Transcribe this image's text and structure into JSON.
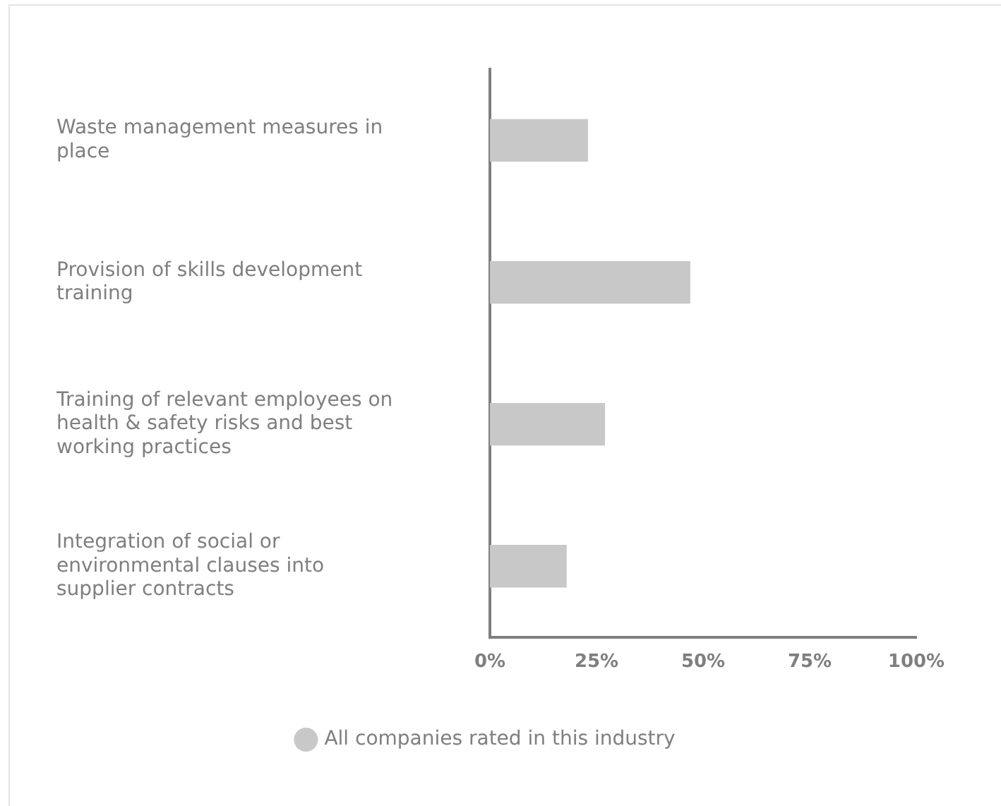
{
  "chart_data": {
    "type": "bar",
    "orientation": "horizontal",
    "categories": [
      "Waste management measures in place",
      "Provision of skills development training",
      "Training of relevant employees on health & safety risks and best working practices",
      "Integration of social or environmental clauses into supplier contracts"
    ],
    "series": [
      {
        "name": "All companies rated in this industry",
        "color": "#c8c8c8",
        "values": [
          23,
          47,
          27,
          18
        ]
      }
    ],
    "xlim": [
      0,
      100
    ],
    "xticks": [
      {
        "value": 0,
        "label": "0%"
      },
      {
        "value": 25,
        "label": "25%"
      },
      {
        "value": 50,
        "label": "50%"
      },
      {
        "value": 75,
        "label": "75%"
      },
      {
        "value": 100,
        "label": "100%"
      }
    ],
    "grid": false,
    "legend": "bottom"
  }
}
